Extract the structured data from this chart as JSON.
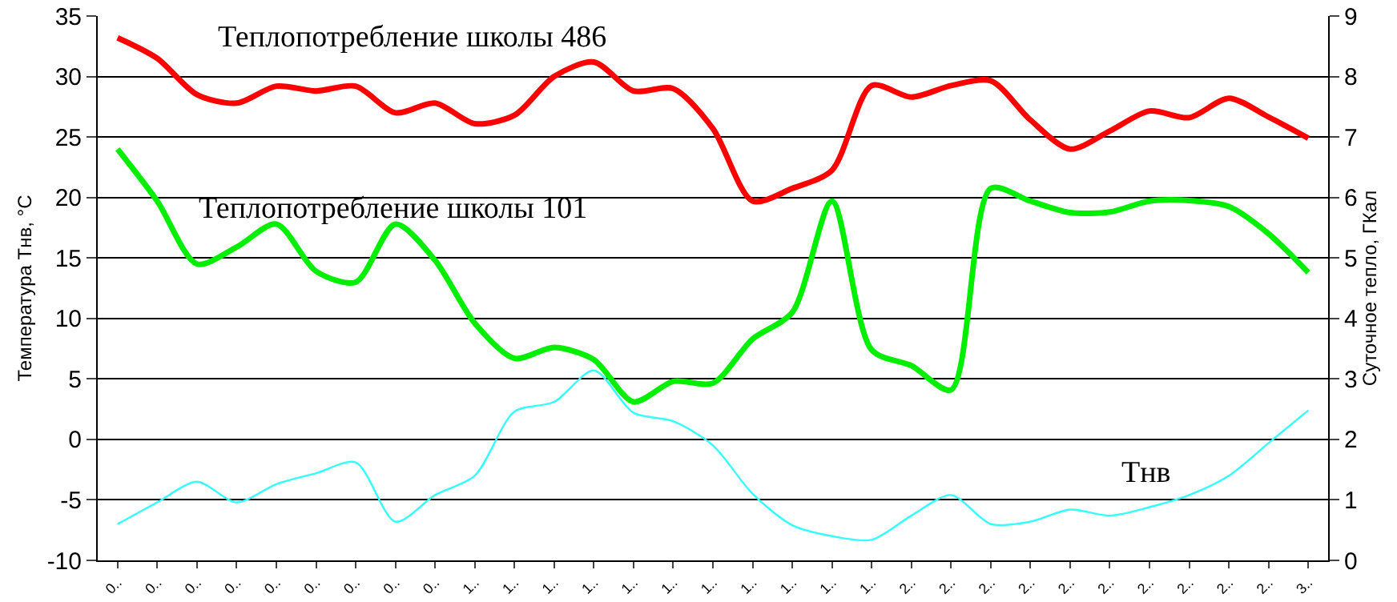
{
  "chart_data": {
    "type": "line",
    "categories": [
      "0..",
      "0..",
      "0..",
      "0..",
      "0..",
      "0..",
      "0..",
      "0..",
      "0..",
      "1..",
      "1..",
      "1..",
      "1..",
      "1..",
      "1..",
      "1..",
      "1..",
      "1..",
      "1..",
      "1..",
      "2..",
      "2..",
      "2..",
      "2..",
      "2..",
      "2..",
      "2..",
      "2..",
      "2..",
      "2..",
      "3.."
    ],
    "series": [
      {
        "name": "Теплопотребление школы 486",
        "color": "#ff0000",
        "axis": "y2",
        "values": [
          8.64,
          8.3,
          7.7,
          7.56,
          7.84,
          7.76,
          7.84,
          7.4,
          7.56,
          7.22,
          7.36,
          8.0,
          8.24,
          7.76,
          7.8,
          7.14,
          5.94,
          6.15,
          6.45,
          7.85,
          7.66,
          7.85,
          7.93,
          7.28,
          6.8,
          7.1,
          7.43,
          7.32,
          7.64,
          7.33,
          6.98
        ]
      },
      {
        "name": "Теплопотребление школы 101",
        "color": "#00ee00",
        "axis": "y2",
        "values": [
          6.8,
          5.94,
          4.9,
          5.18,
          5.56,
          4.78,
          4.6,
          5.56,
          4.96,
          3.92,
          3.34,
          3.52,
          3.32,
          2.62,
          2.96,
          2.93,
          3.66,
          4.1,
          5.94,
          3.48,
          3.22,
          2.82,
          6.15,
          5.94,
          5.75,
          5.76,
          5.94,
          5.95,
          5.85,
          5.4,
          4.76
        ]
      },
      {
        "name": "Тнв",
        "color": "#33ffff",
        "values": [
          -7.0,
          -5.2,
          -3.5,
          -5.2,
          -3.7,
          -2.8,
          -1.9,
          -6.8,
          -4.6,
          -3.0,
          2.3,
          3.1,
          5.7,
          2.2,
          1.5,
          -0.5,
          -4.5,
          -7.1,
          -8.0,
          -8.3,
          -6.3,
          -4.6,
          -7.0,
          -6.8,
          -5.8,
          -6.3,
          -5.6,
          -4.6,
          -3.0,
          -0.3,
          2.4
        ]
      }
    ],
    "ylabel": "Температура Тнв, °С",
    "y2label": "Суточное тепло, ГКал",
    "ylim": [
      -10,
      35
    ],
    "yticks": [
      -10,
      -5,
      0,
      5,
      10,
      15,
      20,
      25,
      30,
      35
    ],
    "y2lim": [
      0,
      9
    ],
    "y2ticks": [
      0,
      1,
      2,
      3,
      4,
      5,
      6,
      7,
      8,
      9
    ],
    "grid": "y",
    "legend": false,
    "marker": "none",
    "line_style": "solid"
  }
}
